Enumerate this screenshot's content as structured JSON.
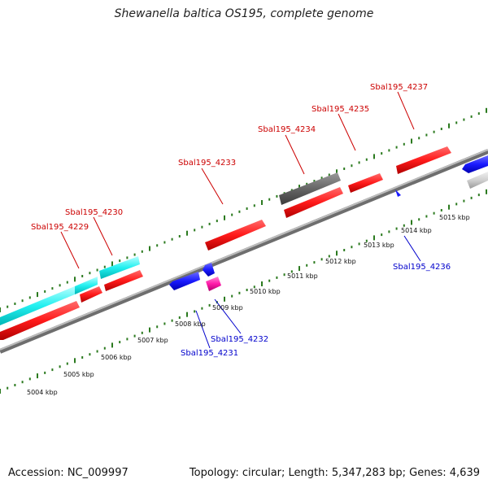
{
  "title": "Shewanella baltica OS195, complete genome",
  "footer": {
    "accession": "Accession: NC_009997",
    "summary": "Topology: circular; Length: 5,347,283 bp; Genes: 4,639"
  },
  "colors": {
    "forward_label": "#cc0000",
    "reverse_label": "#0000cc",
    "backbone": "#9a9a9a",
    "tick_dots": "#2b7a1f"
  },
  "scale_labels": [
    "5004 kbp",
    "5005 kbp",
    "5006 kbp",
    "5007 kbp",
    "5008 kbp",
    "5009 kbp",
    "5010 kbp",
    "5011 kbp",
    "5012 kbp",
    "5013 kbp",
    "5014 kbp",
    "5015 kbp"
  ],
  "gene_labels": [
    {
      "text": "Sbal195_4229",
      "strand": "forward"
    },
    {
      "text": "Sbal195_4230",
      "strand": "forward"
    },
    {
      "text": "Sbal195_4233",
      "strand": "forward"
    },
    {
      "text": "Sbal195_4234",
      "strand": "forward"
    },
    {
      "text": "Sbal195_4235",
      "strand": "forward"
    },
    {
      "text": "Sbal195_4237",
      "strand": "forward"
    },
    {
      "text": "Sbal195_4236",
      "strand": "reverse"
    },
    {
      "text": "Sbal195_4232",
      "strand": "reverse"
    },
    {
      "text": "Sbal195_4231",
      "strand": "reverse"
    }
  ]
}
